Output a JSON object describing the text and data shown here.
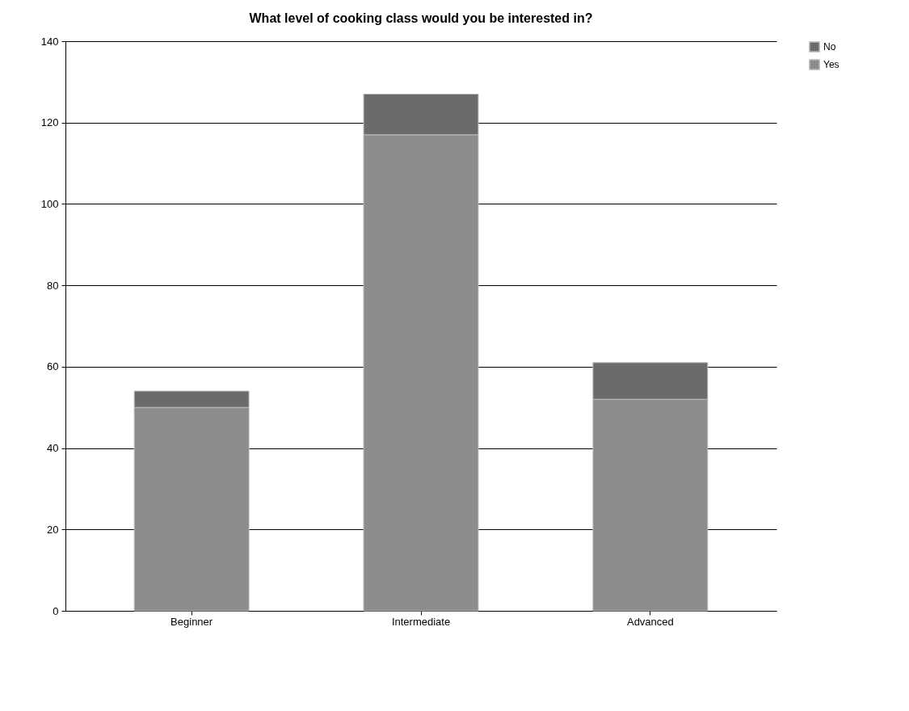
{
  "chart_data": {
    "type": "bar",
    "title": "What level of cooking class would you be interested in?",
    "categories": [
      "Beginner",
      "Intermediate",
      "Advanced"
    ],
    "stacked": true,
    "series": [
      {
        "name": "Yes",
        "color": "#8c8c8c",
        "values": [
          50,
          117,
          52
        ]
      },
      {
        "name": "No",
        "color": "#6b6b6b",
        "values": [
          4,
          10,
          9
        ]
      }
    ],
    "ylim": [
      0,
      140
    ],
    "yticks": [
      0,
      20,
      40,
      60,
      80,
      100,
      120,
      140
    ],
    "grid": "y",
    "legend": "right"
  }
}
